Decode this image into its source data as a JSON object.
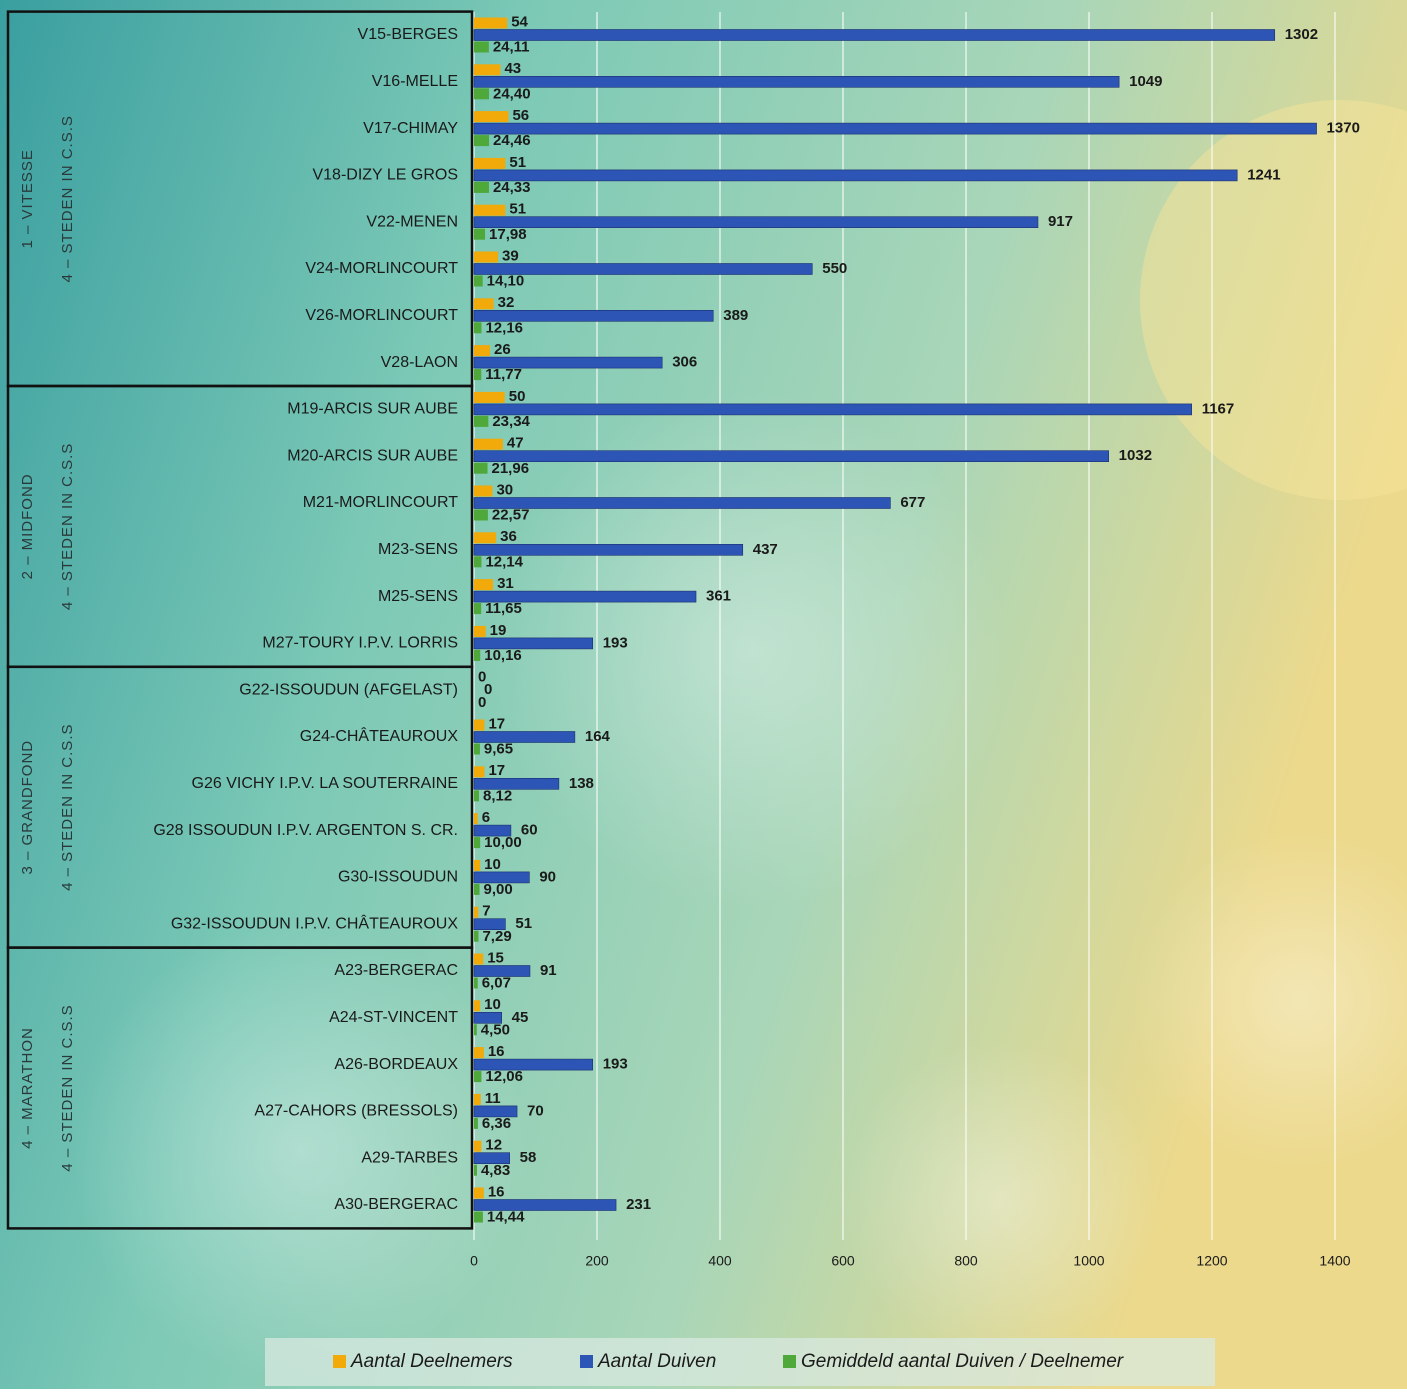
{
  "chart_data": {
    "type": "bar",
    "orientation": "horizontal",
    "groups": [
      {
        "labels": [
          "1 – VITESSE",
          "4 – STEDEN IN C.S.S"
        ],
        "categories": [
          "V15-BERGES",
          "V16-MELLE",
          "V17-CHIMAY",
          "V18-DIZY LE GROS",
          "V22-MENEN",
          "V24-MORLINCOURT",
          "V26-MORLINCOURT",
          "V28-LAON"
        ]
      },
      {
        "labels": [
          "2 – MIDFOND",
          "4 – STEDEN IN C.S.S"
        ],
        "categories": [
          "M19-ARCIS SUR AUBE",
          "M20-ARCIS SUR AUBE",
          "M21-MORLINCOURT",
          "M23-SENS",
          "M25-SENS",
          "M27-TOURY I.P.V. LORRIS"
        ]
      },
      {
        "labels": [
          "3 – GRANDFOND",
          "4 – STEDEN IN C.S.S"
        ],
        "categories": [
          "G22-ISSOUDUN (AFGELAST)",
          "G24-CHÂTEAUROUX",
          "G26 VICHY I.P.V. LA SOUTERRAINE",
          "G28 ISSOUDUN I.P.V. ARGENTON S. CR.",
          "G30-ISSOUDUN",
          "G32-ISSOUDUN I.P.V. CHÂTEAUROUX"
        ]
      },
      {
        "labels": [
          "4 – MARATHON",
          "4 – STEDEN IN C.S.S"
        ],
        "categories": [
          "A23-BERGERAC",
          "A24-ST-VINCENT",
          "A26-BORDEAUX",
          "A27-CAHORS (BRESSOLS)",
          "A29-TARBES",
          "A30-BERGERAC"
        ]
      }
    ],
    "series": [
      {
        "name": "Aantal Deelnemers",
        "color": "#f2a90a",
        "values": [
          54,
          43,
          56,
          51,
          51,
          39,
          32,
          26,
          50,
          47,
          30,
          36,
          31,
          19,
          0,
          17,
          17,
          6,
          10,
          7,
          15,
          10,
          16,
          11,
          12,
          16
        ]
      },
      {
        "name": "Aantal Duiven",
        "color": "#2c55b5",
        "values": [
          1302,
          1049,
          1370,
          1241,
          917,
          550,
          389,
          306,
          1167,
          1032,
          677,
          437,
          361,
          193,
          0,
          164,
          138,
          60,
          90,
          51,
          91,
          45,
          193,
          70,
          58,
          231
        ]
      },
      {
        "name": "Gemiddeld aantal Duiven / Deelnemer",
        "color": "#4ea83a",
        "values": [
          24.11,
          24.4,
          24.46,
          24.33,
          17.98,
          14.1,
          12.16,
          11.77,
          23.34,
          21.96,
          22.57,
          12.14,
          11.65,
          10.16,
          0,
          9.65,
          8.12,
          10.0,
          9.0,
          7.29,
          6.07,
          4.5,
          12.06,
          6.36,
          4.83,
          14.44
        ],
        "value_labels": [
          "24,11",
          "24,40",
          "24,46",
          "24,33",
          "17,98",
          "14,10",
          "12,16",
          "11,77",
          "23,34",
          "21,96",
          "22,57",
          "12,14",
          "11,65",
          "10,16",
          "0",
          "9,65",
          "8,12",
          "10,00",
          "9,00",
          "7,29",
          "6,07",
          "4,50",
          "12,06",
          "6,36",
          "4,83",
          "14,44"
        ]
      }
    ],
    "xlim": [
      0,
      1400
    ],
    "xticks": [
      0,
      200,
      400,
      600,
      800,
      1000,
      1200,
      1400
    ],
    "grid": true,
    "legend": "bottom"
  }
}
